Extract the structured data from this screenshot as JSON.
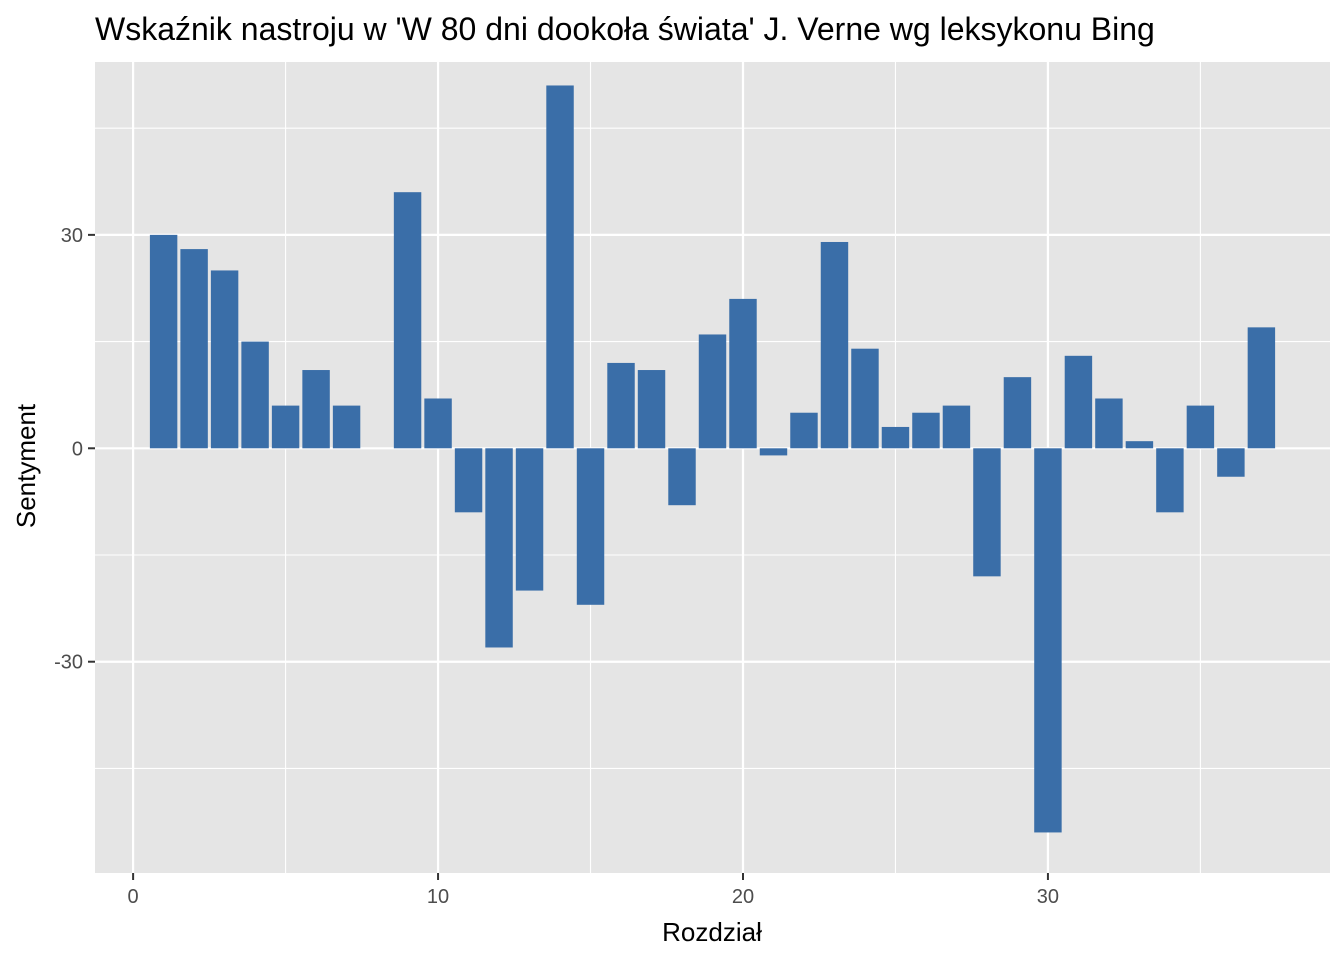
{
  "chart_data": {
    "type": "bar",
    "title": "Wskaźnik nastroju w 'W 80 dni dookoła świata' J. Verne wg leksykonu Bing",
    "xlabel": "Rozdział",
    "ylabel": "Sentyment",
    "x": [
      1,
      2,
      3,
      4,
      5,
      6,
      7,
      9,
      10,
      11,
      12,
      13,
      14,
      15,
      16,
      17,
      18,
      19,
      20,
      21,
      22,
      23,
      24,
      25,
      26,
      27,
      28,
      29,
      30,
      31,
      32,
      33,
      34,
      35,
      36,
      37
    ],
    "values": [
      30,
      28,
      25,
      15,
      6,
      11,
      6,
      36,
      7,
      -9,
      -28,
      -20,
      51,
      -22,
      12,
      11,
      -8,
      16,
      21,
      -1,
      5,
      29,
      14,
      3,
      5,
      6,
      -18,
      10,
      -54,
      13,
      7,
      1,
      -9,
      6,
      -4,
      17
    ],
    "xlim": [
      -1.25,
      39.25
    ],
    "ylim": [
      -59.7,
      54.3
    ],
    "xticks": [
      0,
      10,
      20,
      30
    ],
    "xtick_labels": [
      "0",
      "10",
      "20",
      "30"
    ],
    "yticks": [
      -30,
      0,
      30
    ],
    "ytick_labels": [
      "-30",
      "0",
      "30"
    ],
    "grid": true,
    "legend": "none",
    "colors": {
      "bar": "#3A6EA8",
      "panel": "#E5E5E5",
      "grid": "#FFFFFF"
    }
  }
}
